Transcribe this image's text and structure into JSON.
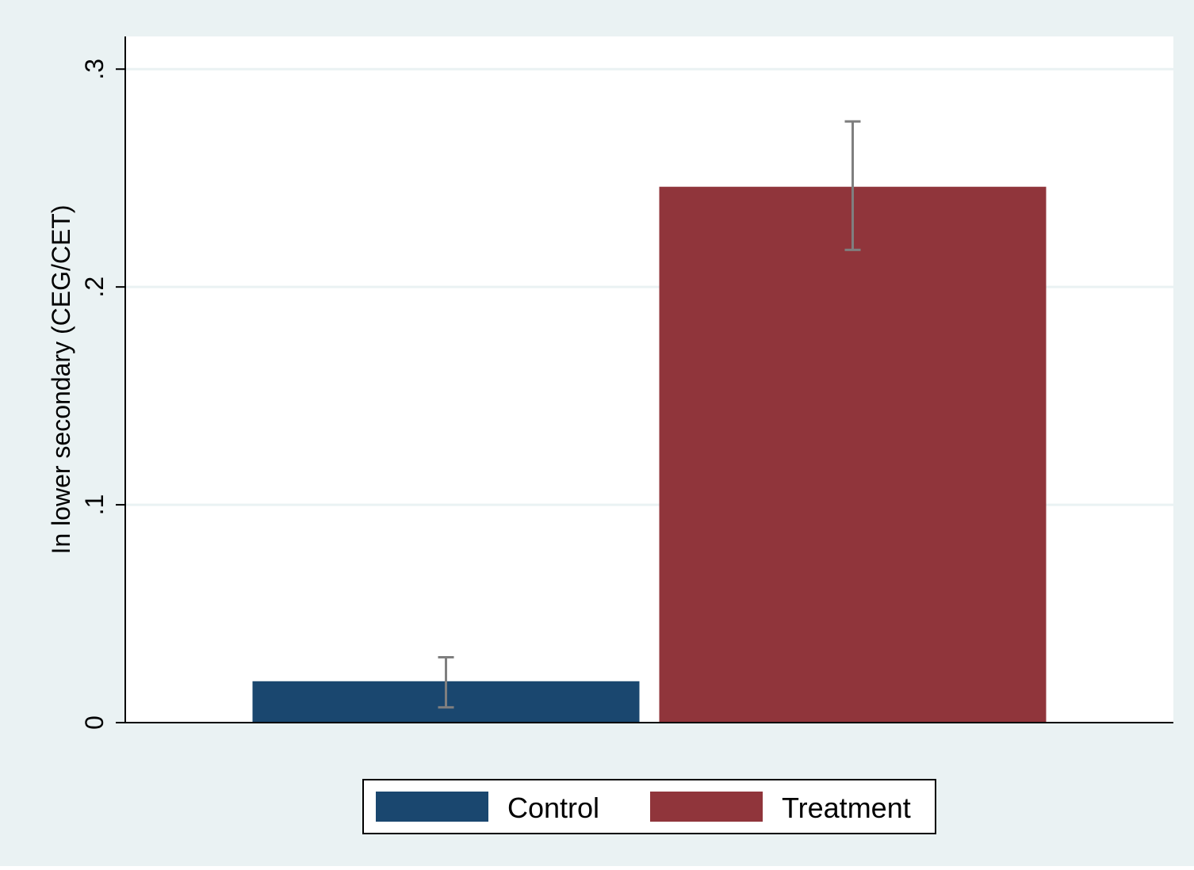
{
  "chart_data": {
    "type": "bar",
    "title": "",
    "xlabel": "",
    "ylabel": "In lower secondary (CEG/CET)",
    "ylim": [
      0,
      0.315
    ],
    "yticks": [
      0,
      0.1,
      0.2,
      0.3
    ],
    "ytick_labels": [
      "0",
      ".1",
      ".2",
      ".3"
    ],
    "grid": true,
    "legend_position": "bottom",
    "series": [
      {
        "name": "Control",
        "value": 0.019,
        "ci_low": 0.007,
        "ci_high": 0.03,
        "color": "#1a476f"
      },
      {
        "name": "Treatment",
        "value": 0.246,
        "ci_low": 0.217,
        "ci_high": 0.276,
        "color": "#90353b"
      }
    ],
    "colors": {
      "background": "#eaf2f3",
      "plot_background": "#ffffff",
      "gridline": "#eaf2f3",
      "error_bar": "#7f7f7f"
    }
  }
}
